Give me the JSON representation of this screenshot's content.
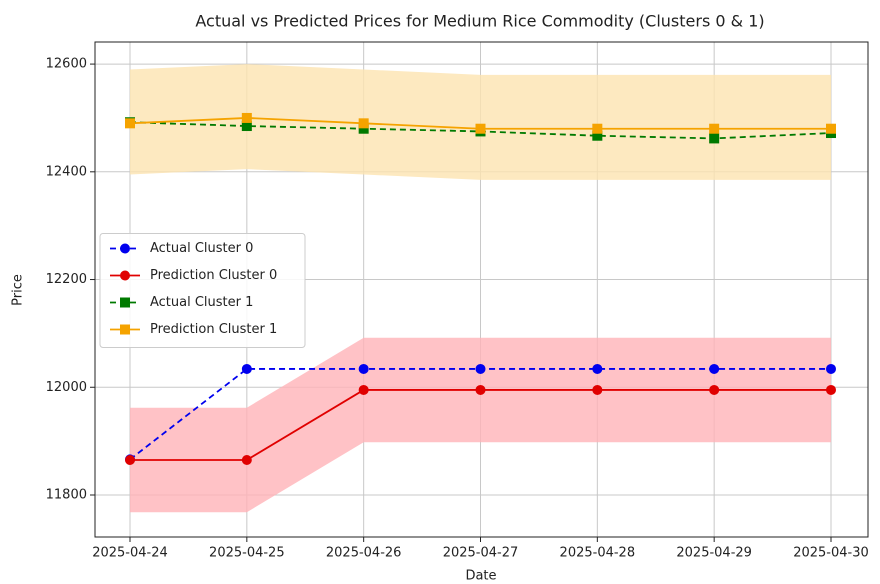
{
  "chart_data": {
    "type": "line",
    "title": "Actual vs Predicted Prices for Medium Rice Commodity (Clusters 0 & 1)",
    "x_label": "Date",
    "y_label": "Price",
    "categories": [
      "2025-04-24",
      "2025-04-25",
      "2025-04-26",
      "2025-04-27",
      "2025-04-28",
      "2025-04-29",
      "2025-04-30"
    ],
    "ylim": [
      11722,
      12641
    ],
    "yticks": [
      11800,
      12000,
      12200,
      12400,
      12600
    ],
    "grid": true,
    "legend": "center left",
    "series": [
      {
        "name": "Actual Cluster 0",
        "color": "#0000ee",
        "linestyle": "dashed",
        "marker": "circle",
        "values": [
          11866,
          12034,
          12034,
          12034,
          12034,
          12034,
          12034
        ]
      },
      {
        "name": "Prediction Cluster 0",
        "color": "#e00000",
        "linestyle": "solid",
        "marker": "circle",
        "values": [
          11865,
          11865,
          11995,
          11995,
          11995,
          11995,
          11995
        ],
        "band_color": "#ffb3b8",
        "band_lower": [
          11768,
          11768,
          11898,
          11898,
          11898,
          11898,
          11898
        ],
        "band_upper": [
          11962,
          11962,
          12092,
          12092,
          12092,
          12092,
          12092
        ]
      },
      {
        "name": "Actual Cluster 1",
        "color": "#007a00",
        "linestyle": "dashed",
        "marker": "square",
        "values": [
          12492,
          12485,
          12480,
          12475,
          12467,
          12462,
          12472
        ]
      },
      {
        "name": "Prediction Cluster 1",
        "color": "#f5a300",
        "linestyle": "solid",
        "marker": "square",
        "values": [
          12490,
          12500,
          12490,
          12480,
          12480,
          12480,
          12480
        ],
        "band_color": "#fde3b0",
        "band_lower": [
          12395,
          12405,
          12395,
          12385,
          12385,
          12385,
          12385
        ],
        "band_upper": [
          12590,
          12600,
          12590,
          12580,
          12580,
          12580,
          12580
        ]
      }
    ]
  }
}
